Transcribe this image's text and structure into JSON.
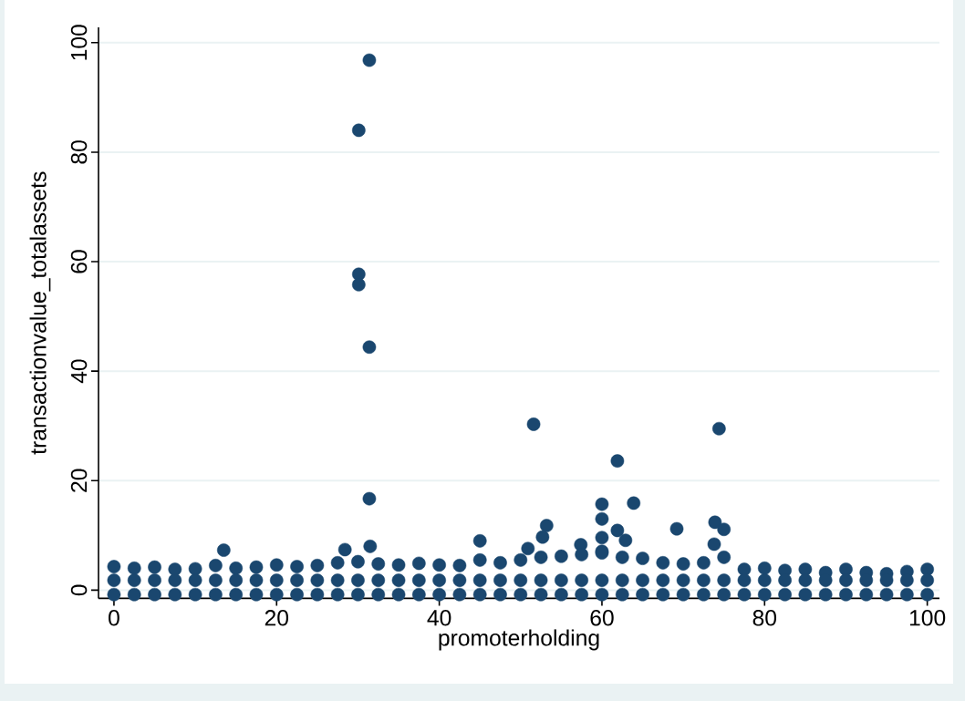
{
  "chart_data": {
    "type": "scatter",
    "xlabel": "promoterholding",
    "ylabel": "transactionvalue_totalassets",
    "x": [
      31.4,
      30.1,
      30.1,
      30.1,
      31.4,
      51.6,
      61.9,
      74.4,
      63.9,
      60.0,
      60.0,
      60.0,
      53.2,
      52.7,
      69.2,
      73.9,
      75.0,
      61.9,
      62.9,
      57.4,
      50.9,
      73.8,
      60.0,
      31.4,
      31.5,
      45.0,
      28.4,
      13.5,
      0,
      2.5,
      5,
      7.5,
      10,
      12.5,
      15,
      17.5,
      20,
      22.5,
      25,
      27.5,
      30,
      32.5,
      35,
      37.5,
      40,
      42.5,
      45,
      47.5,
      50,
      52.5,
      55,
      57.5,
      60,
      62.5,
      65,
      67.5,
      70,
      72.5,
      75,
      77.5,
      80,
      82.5,
      85,
      87.5,
      90,
      92.5,
      95,
      97.5,
      100,
      0,
      2.5,
      5,
      7.5,
      10,
      12.5,
      15,
      17.5,
      20,
      22.5,
      25,
      27.5,
      30,
      32.5,
      35,
      37.5,
      40,
      42.5,
      45,
      47.5,
      50,
      52.5,
      55,
      57.5,
      60,
      62.5,
      65,
      67.5,
      70,
      72.5,
      75,
      77.5,
      80,
      82.5,
      85,
      87.5,
      90,
      92.5,
      95,
      97.5,
      100,
      0,
      2.5,
      5,
      7.5,
      10,
      12.5,
      15,
      17.5,
      20,
      22.5,
      25,
      27.5,
      30,
      32.5,
      35,
      37.5,
      40,
      42.5,
      45,
      47.5,
      50,
      52.5,
      55,
      57.5,
      60,
      62.5,
      65,
      67.5,
      70,
      72.5,
      75,
      77.5,
      80,
      82.5,
      85,
      87.5,
      90,
      92.5,
      95,
      97.5,
      100
    ],
    "values": [
      96.8,
      84.0,
      57.7,
      55.8,
      44.4,
      30.3,
      23.6,
      29.5,
      15.9,
      15.7,
      13.0,
      9.6,
      11.8,
      9.7,
      11.2,
      12.4,
      11.1,
      10.9,
      9.1,
      8.3,
      7.6,
      8.4,
      7.1,
      16.7,
      8.0,
      9.0,
      7.4,
      7.3,
      4.3,
      4.0,
      4.2,
      3.8,
      3.9,
      4.5,
      4.0,
      4.2,
      4.6,
      4.3,
      4.5,
      5.0,
      5.2,
      4.8,
      4.6,
      4.9,
      4.6,
      4.5,
      5.5,
      5.0,
      5.5,
      6.0,
      6.2,
      6.5,
      6.8,
      6.0,
      5.8,
      5.0,
      4.8,
      5.0,
      6.0,
      3.8,
      4.0,
      3.6,
      3.8,
      3.2,
      3.8,
      3.2,
      3.0,
      3.4,
      3.8,
      1.8,
      1.8,
      1.8,
      1.8,
      1.8,
      1.8,
      1.8,
      1.8,
      1.8,
      1.8,
      1.8,
      1.8,
      1.8,
      1.8,
      1.8,
      1.8,
      1.8,
      1.8,
      1.8,
      1.8,
      1.8,
      1.8,
      1.8,
      1.8,
      1.8,
      1.8,
      1.8,
      1.8,
      1.8,
      1.8,
      1.8,
      1.8,
      1.8,
      1.8,
      1.8,
      1.8,
      1.8,
      1.8,
      1.8,
      1.8,
      1.8,
      -0.8,
      -0.8,
      -0.8,
      -0.8,
      -0.8,
      -0.8,
      -0.8,
      -0.8,
      -0.8,
      -0.8,
      -0.8,
      -0.8,
      -0.8,
      -0.8,
      -0.8,
      -0.8,
      -0.8,
      -0.8,
      -0.8,
      -0.8,
      -0.8,
      -0.8,
      -0.8,
      -0.8,
      -0.8,
      -0.8,
      -0.8,
      -0.8,
      -0.8,
      -0.8,
      -0.8,
      -0.8,
      -0.8,
      -0.8,
      -0.8,
      -0.8,
      -0.8,
      -0.8,
      -0.8,
      -0.8,
      -0.8
    ],
    "color": "#1a476f",
    "marker": "circle",
    "grid": "y",
    "xlim": [
      -1.9,
      101.5
    ],
    "ylim": [
      -1.5,
      102.8
    ],
    "xticks": [
      0,
      20,
      40,
      60,
      80,
      100
    ],
    "yticks": [
      0,
      20,
      40,
      60,
      80,
      100
    ]
  }
}
